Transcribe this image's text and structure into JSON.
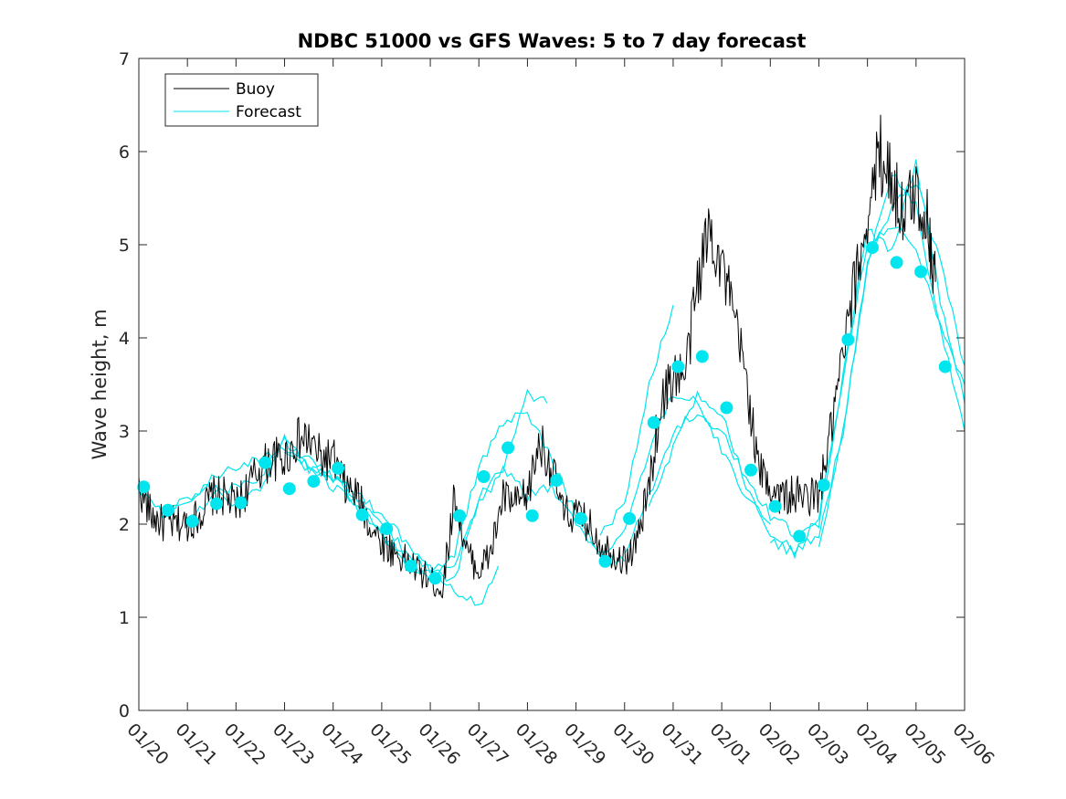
{
  "chart_data": {
    "type": "line",
    "title": "NDBC 51000 vs GFS Waves: 5 to 7 day forecast",
    "xlabel": "",
    "ylabel": "Wave height, m",
    "xlim": [
      0,
      17
    ],
    "ylim": [
      0,
      7
    ],
    "yticks": [
      "0",
      "1",
      "2",
      "3",
      "4",
      "5",
      "6",
      "7"
    ],
    "xticks": [
      "01/20",
      "01/21",
      "01/22",
      "01/23",
      "01/24",
      "01/25",
      "01/26",
      "01/27",
      "01/28",
      "01/29",
      "01/30",
      "01/31",
      "02/01",
      "02/02",
      "02/03",
      "02/04",
      "02/05",
      "02/06"
    ],
    "legend": {
      "position": "top-left",
      "entries": [
        "Buoy",
        "Forecast"
      ]
    },
    "colors": {
      "buoy": "#000000",
      "forecast": "#00e5ee",
      "axes": "#262626"
    },
    "buoy": {
      "name": "Buoy",
      "x": [
        0.0,
        0.25,
        0.5,
        0.75,
        1.0,
        1.25,
        1.5,
        1.75,
        2.0,
        2.25,
        2.5,
        2.75,
        3.0,
        3.25,
        3.5,
        3.75,
        4.0,
        4.25,
        4.5,
        4.75,
        5.0,
        5.25,
        5.5,
        5.75,
        6.0,
        6.25,
        6.5,
        6.75,
        7.0,
        7.25,
        7.5,
        7.75,
        8.0,
        8.25,
        8.5,
        8.75,
        9.0,
        9.25,
        9.5,
        9.75,
        10.0,
        10.25,
        10.5,
        10.75,
        11.0,
        11.25,
        11.5,
        11.75,
        12.0,
        12.25,
        12.5,
        12.75,
        13.0,
        13.25,
        13.5,
        13.75,
        14.0,
        14.25,
        14.5,
        14.75,
        15.0,
        15.25,
        15.5,
        15.75,
        16.0,
        16.25,
        16.4
      ],
      "y": [
        2.4,
        2.1,
        2.0,
        2.0,
        2.0,
        2.1,
        2.3,
        2.3,
        2.2,
        2.4,
        2.6,
        2.7,
        2.7,
        2.9,
        2.9,
        2.7,
        2.7,
        2.4,
        2.3,
        2.0,
        1.8,
        1.7,
        1.6,
        1.5,
        1.4,
        1.3,
        2.3,
        1.7,
        1.5,
        1.7,
        2.3,
        2.2,
        2.3,
        2.9,
        2.6,
        2.1,
        2.1,
        2.0,
        1.8,
        1.7,
        1.6,
        1.8,
        2.4,
        3.3,
        3.6,
        3.6,
        4.6,
        5.2,
        4.8,
        4.2,
        3.6,
        2.6,
        2.4,
        2.3,
        2.3,
        2.3,
        2.3,
        3.0,
        3.8,
        4.6,
        5.3,
        6.0,
        5.7,
        5.3,
        5.6,
        5.2,
        4.6
      ]
    },
    "forecast_markers": {
      "name": "Forecast",
      "x": [
        0.1,
        0.6,
        1.1,
        1.6,
        2.1,
        2.6,
        3.1,
        3.6,
        4.1,
        4.6,
        5.1,
        5.6,
        6.1,
        6.6,
        7.1,
        7.6,
        8.1,
        8.6,
        9.1,
        9.6,
        10.1,
        10.6,
        11.1,
        11.6,
        12.1,
        12.6,
        13.1,
        13.6,
        14.1,
        14.6,
        15.1,
        15.6,
        16.1,
        16.6
      ],
      "y": [
        2.4,
        2.15,
        2.03,
        2.22,
        2.23,
        2.66,
        2.38,
        2.46,
        2.6,
        2.1,
        1.95,
        1.55,
        1.42,
        2.09,
        2.51,
        2.82,
        2.09,
        2.47,
        2.06,
        1.6,
        2.06,
        3.09,
        3.69,
        3.8,
        3.25,
        2.58,
        2.19,
        1.87,
        2.42,
        3.98,
        4.97,
        4.81,
        4.71,
        3.69
      ]
    },
    "forecast_runs": [
      {
        "x": [
          0.0,
          0.5,
          1.0,
          1.5,
          2.0,
          2.5,
          3.0,
          3.5,
          4.0,
          4.5,
          5.0,
          5.5,
          6.0,
          6.5,
          7.0,
          7.4
        ],
        "y": [
          2.4,
          2.1,
          2.2,
          2.5,
          2.6,
          2.7,
          2.8,
          2.6,
          2.5,
          2.3,
          2.0,
          1.7,
          1.5,
          1.3,
          1.1,
          1.55
        ]
      },
      {
        "x": [
          0.5,
          1.0,
          1.5,
          2.0,
          2.5,
          3.0,
          3.5,
          4.0,
          4.5,
          5.0,
          5.5,
          6.0,
          6.5,
          7.0,
          7.5,
          8.0,
          8.4
        ],
        "y": [
          2.1,
          2.3,
          2.4,
          2.2,
          2.4,
          2.9,
          2.7,
          2.5,
          2.3,
          2.1,
          1.8,
          1.5,
          1.4,
          2.3,
          2.6,
          3.4,
          3.3
        ]
      },
      {
        "x": [
          1.0,
          1.5,
          2.0,
          2.5,
          3.0,
          3.5,
          4.0,
          4.5,
          5.0,
          5.5,
          6.0,
          6.5,
          7.0,
          7.5,
          8.0,
          8.5,
          9.0,
          9.5,
          10.0
        ],
        "y": [
          2.0,
          2.3,
          2.4,
          2.5,
          2.9,
          2.6,
          2.4,
          2.2,
          1.9,
          1.6,
          1.45,
          1.7,
          2.6,
          3.1,
          3.2,
          2.7,
          2.1,
          1.7,
          1.6
        ]
      },
      {
        "x": [
          3.0,
          3.5,
          4.0,
          4.5,
          5.0,
          5.5,
          6.0,
          6.5,
          7.0,
          7.5,
          8.0,
          8.5,
          9.0,
          9.5,
          10.0,
          10.5,
          11.0,
          11.5,
          12.0,
          12.5,
          13.0
        ],
        "y": [
          2.8,
          2.6,
          2.5,
          2.2,
          1.9,
          1.6,
          1.4,
          1.6,
          2.2,
          2.6,
          2.3,
          2.4,
          2.0,
          1.7,
          1.9,
          2.8,
          3.4,
          3.3,
          2.8,
          2.3,
          2.0
        ]
      },
      {
        "x": [
          9.5,
          10.0,
          10.5,
          11.0
        ],
        "y": [
          1.9,
          2.2,
          3.5,
          4.35
        ]
      },
      {
        "x": [
          10.0,
          10.5,
          11.0,
          11.5,
          12.0,
          12.5,
          13.0,
          13.5,
          14.0,
          14.5,
          15.0,
          15.5,
          16.0,
          16.5,
          17.0
        ],
        "y": [
          1.7,
          2.3,
          3.0,
          3.2,
          3.0,
          2.5,
          2.1,
          1.9,
          2.0,
          3.6,
          5.0,
          5.2,
          5.0,
          4.1,
          3.5
        ]
      },
      {
        "x": [
          10.5,
          11.0,
          11.5,
          12.0,
          12.5,
          13.0,
          13.5,
          14.0,
          14.5,
          15.0,
          15.5,
          16.0,
          16.5,
          17.0
        ],
        "y": [
          2.2,
          2.8,
          3.4,
          3.2,
          2.4,
          1.9,
          1.7,
          1.9,
          3.0,
          4.8,
          5.4,
          5.7,
          4.8,
          3.7
        ]
      },
      {
        "x": [
          13.0,
          13.5,
          14.0,
          14.5,
          15.0,
          15.5,
          16.0,
          16.5,
          17.0
        ],
        "y": [
          1.8,
          1.7,
          2.1,
          3.6,
          5.2,
          4.9,
          5.9,
          4.4,
          3.3
        ]
      },
      {
        "x": [
          14.0,
          14.5,
          15.0,
          15.5,
          16.0,
          16.5,
          17.0
        ],
        "y": [
          1.75,
          3.0,
          4.8,
          5.8,
          5.4,
          4.1,
          3.0
        ]
      }
    ]
  }
}
